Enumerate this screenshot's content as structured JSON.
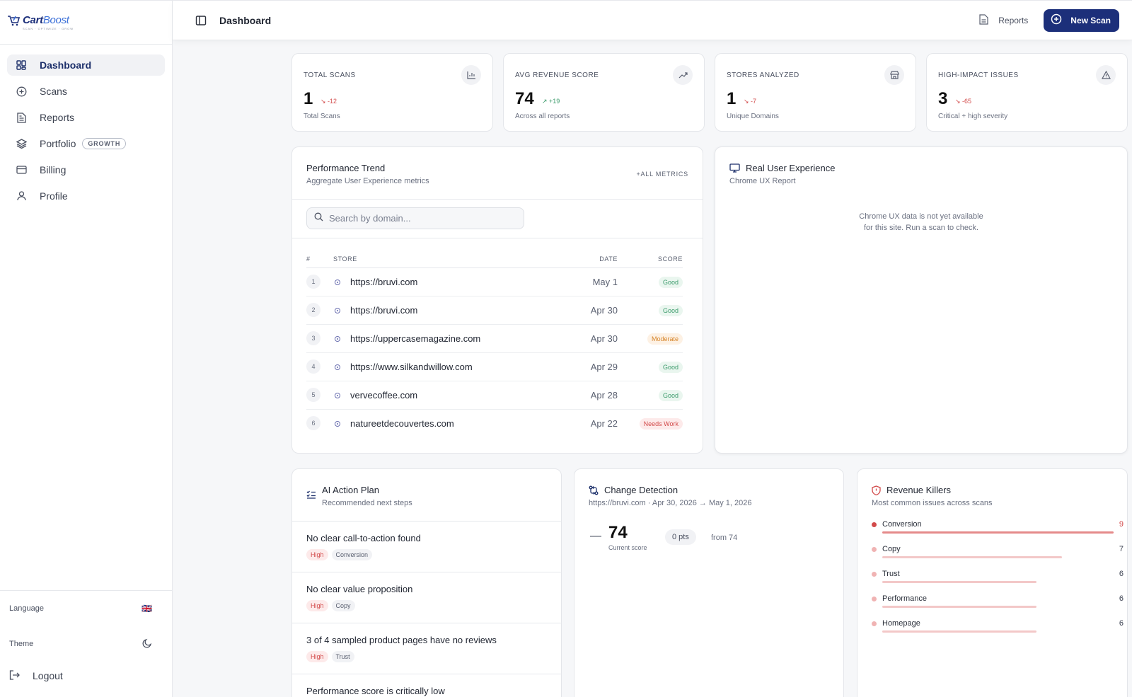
{
  "brand": {
    "name_a": "Cart",
    "name_b": "Boost",
    "tagline": "SCAN · OPTIMIZE · GROW"
  },
  "sidebar": {
    "items": [
      {
        "label": "Dashboard",
        "icon": "grid-icon"
      },
      {
        "label": "Scans",
        "icon": "plus-circle-icon"
      },
      {
        "label": "Reports",
        "icon": "document-icon"
      },
      {
        "label": "Portfolio",
        "icon": "layers-icon",
        "badge": "GROWTH"
      },
      {
        "label": "Billing",
        "icon": "credit-card-icon"
      },
      {
        "label": "Profile",
        "icon": "user-icon"
      }
    ],
    "language_label": "Language",
    "language_flag": "🇬🇧",
    "theme_label": "Theme",
    "logout_label": "Logout"
  },
  "header": {
    "title": "Dashboard",
    "reports_label": "Reports",
    "new_scan_label": "New Scan"
  },
  "stats": [
    {
      "label": "TOTAL SCANS",
      "value": "1",
      "delta": "↘ -12",
      "sub": "Total Scans"
    },
    {
      "label": "AVG REVENUE SCORE",
      "value": "74",
      "delta": "↗ +19",
      "sub": "Across all reports"
    },
    {
      "label": "STORES ANALYZED",
      "value": "1",
      "delta": "↘ -7",
      "sub": "Unique Domains"
    },
    {
      "label": "HIGH-IMPACT ISSUES",
      "value": "3",
      "delta": "↘ -65",
      "sub": "Critical + high severity"
    }
  ],
  "trend": {
    "title": "Performance Trend",
    "subtitle": "Aggregate User Experience metrics",
    "all_metrics": "+ALL METRICS",
    "search_placeholder": "Search by domain...",
    "columns": {
      "num": "#",
      "store": "STORE",
      "date": "DATE",
      "score": "SCORE"
    },
    "rows": [
      {
        "num": "1",
        "store": "https://bruvi.com",
        "date": "May 1",
        "score": "Good"
      },
      {
        "num": "2",
        "store": "https://bruvi.com",
        "date": "Apr 30",
        "score": "Good"
      },
      {
        "num": "3",
        "store": "https://uppercasemagazine.com",
        "date": "Apr 30",
        "score": "Moderate"
      },
      {
        "num": "4",
        "store": "https://www.silkandwillow.com",
        "date": "Apr 29",
        "score": "Good"
      },
      {
        "num": "5",
        "store": "vervecoffee.com",
        "date": "Apr 28",
        "score": "Good"
      },
      {
        "num": "6",
        "store": "natureetdecouvertes.com",
        "date": "Apr 22",
        "score": "Needs Work"
      }
    ]
  },
  "rux": {
    "title": "Real User Experience",
    "subtitle": "Chrome UX Report",
    "empty_line1": "Chrome UX data is not yet available",
    "empty_line2": "for this site. Run a scan to check."
  },
  "action_plan": {
    "title": "AI Action Plan",
    "subtitle": "Recommended next steps",
    "items": [
      {
        "title": "No clear call-to-action found",
        "severity": "High",
        "category": "Conversion"
      },
      {
        "title": "No clear value proposition",
        "severity": "High",
        "category": "Copy"
      },
      {
        "title": "3 of 4 sampled product pages have no reviews",
        "severity": "High",
        "category": "Trust"
      },
      {
        "title": "Performance score is critically low",
        "severity": "",
        "category": ""
      }
    ]
  },
  "change": {
    "title": "Change Detection",
    "range": "https://bruvi.com · Apr 30, 2026 → May 1, 2026",
    "dash": "—",
    "score": "74",
    "score_label": "Current score",
    "pts": "0 pts",
    "from": "from 74"
  },
  "killers": {
    "title": "Revenue Killers",
    "subtitle": "Most common issues across scans",
    "max": 9,
    "items": [
      {
        "label": "Conversion",
        "count": 9
      },
      {
        "label": "Copy",
        "count": 7
      },
      {
        "label": "Trust",
        "count": 6
      },
      {
        "label": "Performance",
        "count": 6
      },
      {
        "label": "Homepage",
        "count": 6
      }
    ]
  },
  "colors": {
    "primary": "#1c2f7a",
    "danger": "#d24a4a",
    "success": "#3a9a6a",
    "warning": "#d6852a"
  }
}
